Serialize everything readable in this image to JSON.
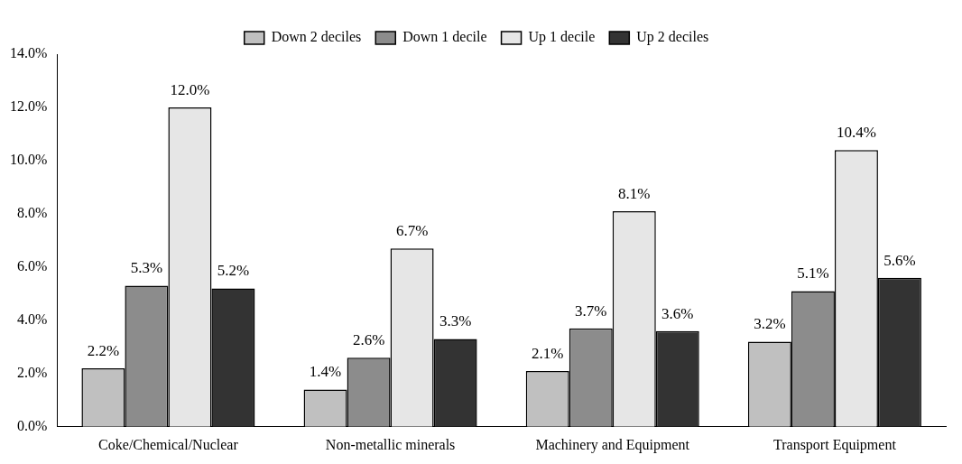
{
  "chart_data": {
    "type": "bar",
    "categories": [
      "Coke/Chemical/Nuclear",
      "Non-metallic minerals",
      "Machinery and Equipment",
      "Transport Equipment"
    ],
    "series": [
      {
        "name": "Down 2 deciles",
        "color": "#c0c0c0",
        "values": [
          2.2,
          1.4,
          2.1,
          3.2
        ],
        "value_labels": [
          "2.2%",
          "1.4%",
          "2.1%",
          "3.2%"
        ]
      },
      {
        "name": "Down 1 decile",
        "color": "#8c8c8c",
        "values": [
          5.3,
          2.6,
          3.7,
          5.1
        ],
        "value_labels": [
          "5.3%",
          "2.6%",
          "3.7%",
          "5.1%"
        ]
      },
      {
        "name": "Up 1 decile",
        "color": "#e6e6e6",
        "values": [
          12.0,
          6.7,
          8.1,
          10.4
        ],
        "value_labels": [
          "12.0%",
          "6.7%",
          "8.1%",
          "10.4%"
        ]
      },
      {
        "name": "Up 2 deciles",
        "color": "#333333",
        "values": [
          5.2,
          3.3,
          3.6,
          5.6
        ],
        "value_labels": [
          "5.2%",
          "3.3%",
          "3.6%",
          "5.6%"
        ]
      }
    ],
    "ylim": [
      0,
      14
    ],
    "yticks": [
      {
        "value": 0,
        "label": "0.0%"
      },
      {
        "value": 2,
        "label": "2.0%"
      },
      {
        "value": 4,
        "label": "4.0%"
      },
      {
        "value": 6,
        "label": "6.0%"
      },
      {
        "value": 8,
        "label": "8.0%"
      },
      {
        "value": 10,
        "label": "10.0%"
      },
      {
        "value": 12,
        "label": "12.0%"
      },
      {
        "value": 14,
        "label": "14.0%"
      }
    ],
    "grid": false,
    "legend": "top"
  }
}
